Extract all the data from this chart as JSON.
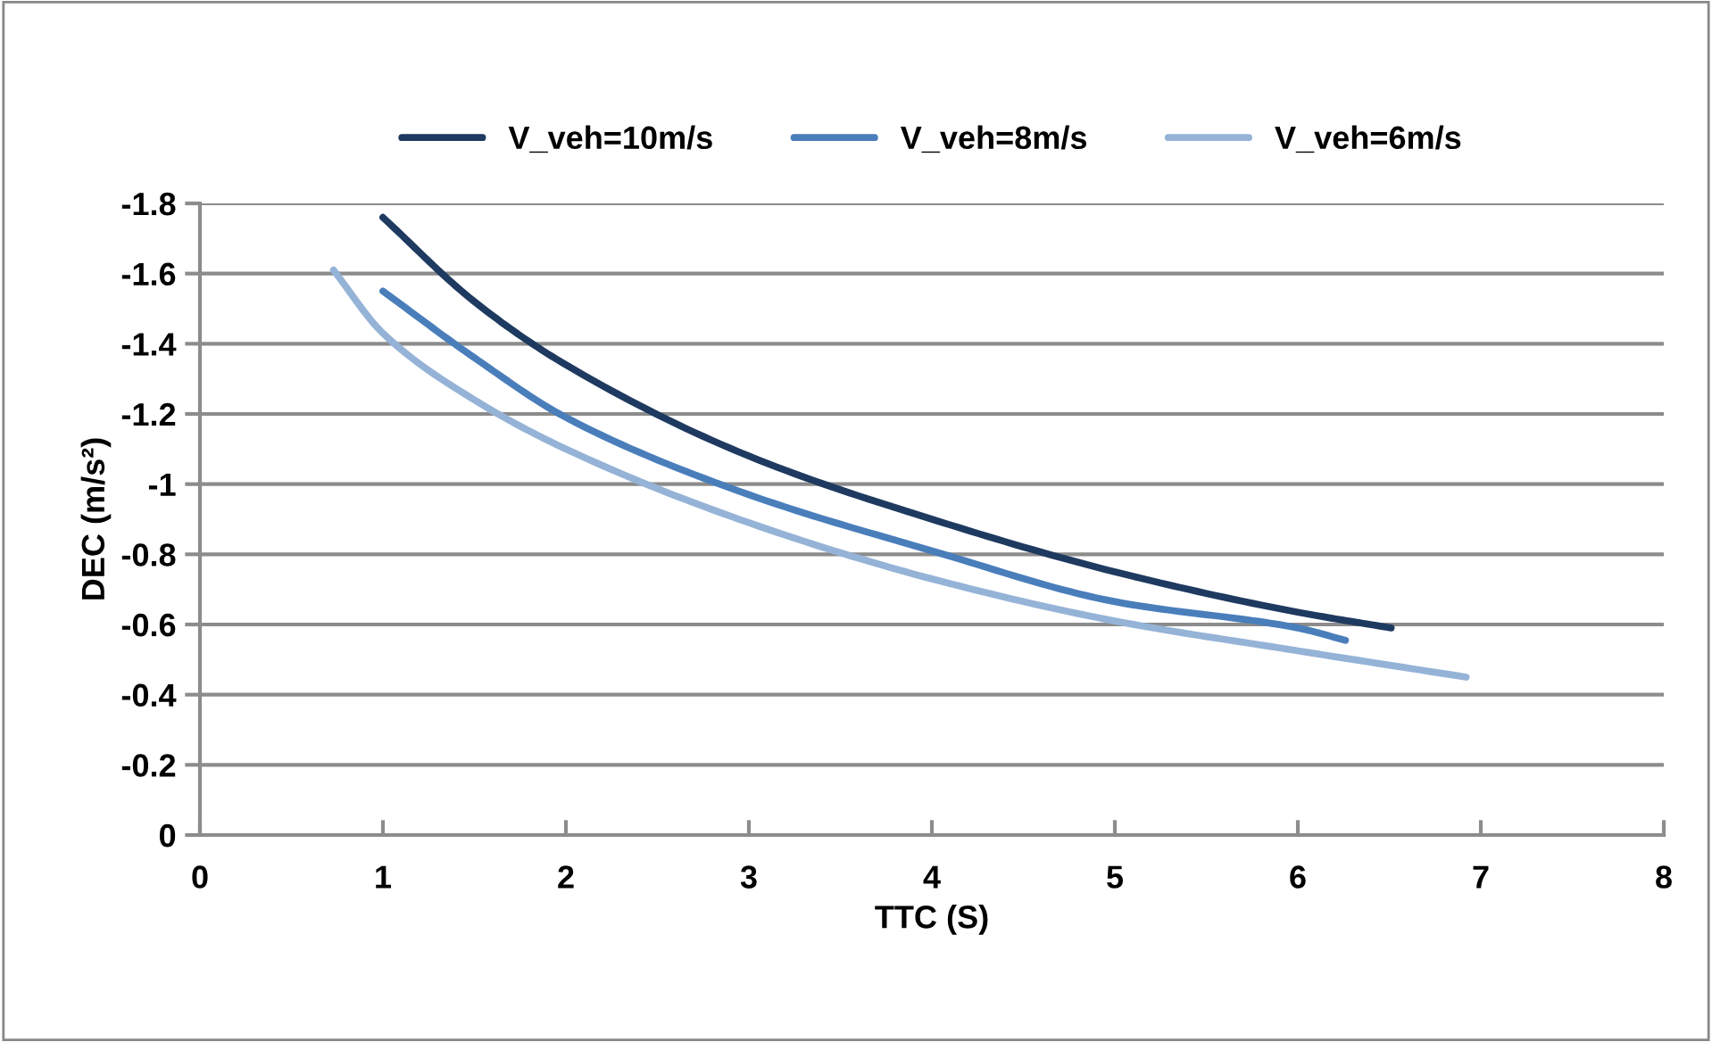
{
  "chart_data": {
    "type": "line",
    "xlabel": "TTC (S)",
    "ylabel": "DEC (m/s²)",
    "xlim": [
      0,
      8
    ],
    "xticks": [
      0,
      1,
      2,
      3,
      4,
      5,
      6,
      7,
      8
    ],
    "ylim": [
      0,
      -1.8
    ],
    "yticks": [
      0,
      -0.2,
      -0.4,
      -0.6,
      -0.8,
      -1,
      -1.2,
      -1.4,
      -1.6,
      -1.8
    ],
    "grid": "y",
    "legend": "top",
    "marker": "none",
    "line_style": "solid",
    "series": [
      {
        "name": "V_veh=10m/s",
        "color": "#1f3a60",
        "x": [
          1.0,
          1.5,
          2,
          3,
          4,
          5,
          6,
          6.51
        ],
        "values": [
          -1.76,
          -1.52,
          -1.34,
          -1.08,
          -0.9,
          -0.75,
          -0.635,
          -0.59
        ]
      },
      {
        "name": "V_veh=8m/s",
        "color": "#4a7ebb",
        "x": [
          1.0,
          1.5,
          2,
          3,
          4,
          5,
          6,
          6.26
        ],
        "values": [
          -1.55,
          -1.36,
          -1.19,
          -0.97,
          -0.81,
          -0.665,
          -0.59,
          -0.555
        ]
      },
      {
        "name": "V_veh=6m/s",
        "color": "#95b3d7",
        "x": [
          0.73,
          1,
          1.5,
          2,
          3,
          4,
          5,
          6,
          6.92
        ],
        "values": [
          -1.61,
          -1.43,
          -1.24,
          -1.1,
          -0.89,
          -0.73,
          -0.61,
          -0.525,
          -0.45
        ]
      }
    ]
  }
}
